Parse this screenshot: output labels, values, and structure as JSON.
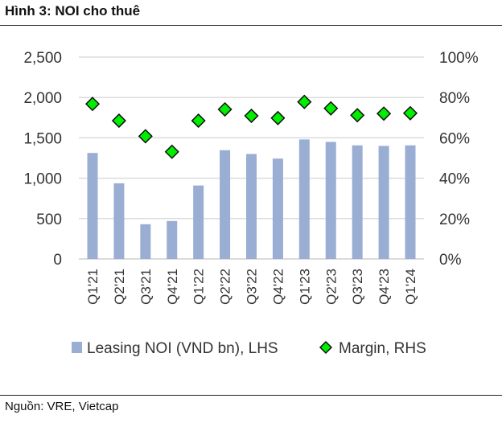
{
  "header": {
    "title": "Hình 3: NOI cho thuê"
  },
  "footer": {
    "source": "Nguồn: VRE, Vietcap"
  },
  "chart_data": {
    "type": "bar",
    "title": "",
    "categories": [
      "Q1'21",
      "Q2'21",
      "Q3'21",
      "Q4'21",
      "Q1'22",
      "Q2'22",
      "Q3'22",
      "Q4'22",
      "Q1'23",
      "Q2'23",
      "Q3'23",
      "Q4'23",
      "Q1'24"
    ],
    "series": [
      {
        "name": "Leasing NOI (VND bn), LHS",
        "type": "bar",
        "axis": "left",
        "color": "#9aaed3",
        "values": [
          1313,
          937,
          430,
          470,
          910,
          1347,
          1300,
          1243,
          1480,
          1450,
          1407,
          1400,
          1407
        ]
      },
      {
        "name": "Margin, RHS",
        "type": "scatter",
        "marker": "diamond",
        "axis": "right",
        "color": "#00ee00",
        "values": [
          76.8,
          68.5,
          60.8,
          53.1,
          68.5,
          74.1,
          70.9,
          69.8,
          77.8,
          74.6,
          71.2,
          72.0,
          72.2
        ]
      }
    ],
    "ylim": [
      0,
      2500
    ],
    "yticks": [
      "0",
      "500",
      "1,000",
      "1,500",
      "2,000",
      "2,500"
    ],
    "y2lim": [
      0,
      100
    ],
    "y2ticks": [
      "0%",
      "20%",
      "40%",
      "60%",
      "80%",
      "100%"
    ],
    "grid": true,
    "legend": "bottom"
  }
}
